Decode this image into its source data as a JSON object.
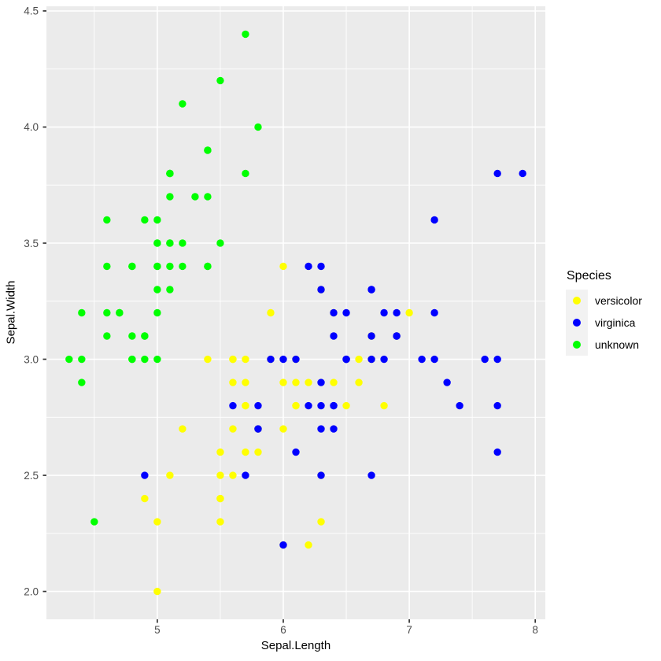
{
  "legend": {
    "title": "Species",
    "entries": [
      {
        "label": "versicolor",
        "color": "#FFFF00"
      },
      {
        "label": "virginica",
        "color": "#0000FF"
      },
      {
        "label": "unknown",
        "color": "#00FF00"
      }
    ]
  },
  "colors": {
    "background": "#FFFFFF",
    "panel_bg": "#EBEBEB",
    "grid": "#FFFFFF",
    "tick_mark": "#333333",
    "tick_text": "#4D4D4D",
    "axis_title": "#000000",
    "legend_key_bg": "#F2F2F2"
  },
  "chart_data": {
    "type": "scatter",
    "title": "",
    "xlabel": "Sepal.Length",
    "ylabel": "Sepal.Width",
    "xlim": [
      4.12,
      8.08
    ],
    "ylim": [
      1.88,
      4.52
    ],
    "x_ticks": [
      5,
      6,
      7,
      8
    ],
    "x_tick_labels": [
      "5",
      "6",
      "7",
      "8"
    ],
    "x_minor": [
      4.5,
      5.5,
      6.5,
      7.5
    ],
    "y_ticks": [
      2.0,
      2.5,
      3.0,
      3.5,
      4.0,
      4.5
    ],
    "y_tick_labels": [
      "2.0",
      "2.5",
      "3.0",
      "3.5",
      "4.0",
      "4.5"
    ],
    "y_minor": [
      2.25,
      2.75,
      3.25,
      3.75,
      4.25
    ],
    "grid": true,
    "legend_position": "right",
    "point_radius": 4.7,
    "series": [
      {
        "name": "unknown",
        "color": "#00FF00",
        "points": [
          [
            5.1,
            3.5
          ],
          [
            4.9,
            3.0
          ],
          [
            4.7,
            3.2
          ],
          [
            4.6,
            3.1
          ],
          [
            5.0,
            3.6
          ],
          [
            5.4,
            3.9
          ],
          [
            4.6,
            3.4
          ],
          [
            5.0,
            3.4
          ],
          [
            4.4,
            2.9
          ],
          [
            4.9,
            3.1
          ],
          [
            5.4,
            3.7
          ],
          [
            4.8,
            3.4
          ],
          [
            4.8,
            3.0
          ],
          [
            4.3,
            3.0
          ],
          [
            5.8,
            4.0
          ],
          [
            5.7,
            4.4
          ],
          [
            5.4,
            3.9
          ],
          [
            5.1,
            3.5
          ],
          [
            5.7,
            3.8
          ],
          [
            5.1,
            3.8
          ],
          [
            5.4,
            3.4
          ],
          [
            5.1,
            3.7
          ],
          [
            4.6,
            3.6
          ],
          [
            5.1,
            3.3
          ],
          [
            4.8,
            3.4
          ],
          [
            5.0,
            3.0
          ],
          [
            5.0,
            3.4
          ],
          [
            5.2,
            3.5
          ],
          [
            5.2,
            3.4
          ],
          [
            4.7,
            3.2
          ],
          [
            4.8,
            3.1
          ],
          [
            5.4,
            3.4
          ],
          [
            5.2,
            4.1
          ],
          [
            5.5,
            4.2
          ],
          [
            4.9,
            3.1
          ],
          [
            5.0,
            3.2
          ],
          [
            5.5,
            3.5
          ],
          [
            4.9,
            3.6
          ],
          [
            4.4,
            3.0
          ],
          [
            5.1,
            3.4
          ],
          [
            5.0,
            3.5
          ],
          [
            4.5,
            2.3
          ],
          [
            4.4,
            3.2
          ],
          [
            5.0,
            3.5
          ],
          [
            5.1,
            3.8
          ],
          [
            4.8,
            3.0
          ],
          [
            5.1,
            3.8
          ],
          [
            4.6,
            3.2
          ],
          [
            5.3,
            3.7
          ],
          [
            5.0,
            3.3
          ]
        ]
      },
      {
        "name": "versicolor",
        "color": "#FFFF00",
        "points": [
          [
            7.0,
            3.2
          ],
          [
            6.4,
            3.2
          ],
          [
            6.9,
            3.1
          ],
          [
            5.5,
            2.3
          ],
          [
            6.5,
            2.8
          ],
          [
            5.7,
            2.8
          ],
          [
            6.3,
            3.3
          ],
          [
            4.9,
            2.4
          ],
          [
            6.6,
            2.9
          ],
          [
            5.2,
            2.7
          ],
          [
            5.0,
            2.0
          ],
          [
            5.9,
            3.0
          ],
          [
            6.0,
            2.2
          ],
          [
            6.1,
            2.9
          ],
          [
            5.6,
            2.9
          ],
          [
            6.7,
            3.1
          ],
          [
            5.6,
            3.0
          ],
          [
            5.8,
            2.7
          ],
          [
            6.2,
            2.2
          ],
          [
            5.6,
            2.5
          ],
          [
            5.9,
            3.2
          ],
          [
            6.1,
            2.8
          ],
          [
            6.3,
            2.5
          ],
          [
            6.1,
            2.8
          ],
          [
            6.4,
            2.9
          ],
          [
            6.6,
            3.0
          ],
          [
            6.8,
            2.8
          ],
          [
            6.7,
            3.0
          ],
          [
            6.0,
            2.9
          ],
          [
            5.7,
            2.6
          ],
          [
            5.5,
            2.4
          ],
          [
            5.5,
            2.4
          ],
          [
            5.8,
            2.7
          ],
          [
            6.0,
            2.7
          ],
          [
            5.4,
            3.0
          ],
          [
            6.0,
            3.4
          ],
          [
            6.7,
            3.1
          ],
          [
            6.3,
            2.3
          ],
          [
            5.6,
            3.0
          ],
          [
            5.5,
            2.5
          ],
          [
            5.5,
            2.6
          ],
          [
            6.1,
            3.0
          ],
          [
            5.8,
            2.6
          ],
          [
            5.0,
            2.3
          ],
          [
            5.6,
            2.7
          ],
          [
            5.7,
            3.0
          ],
          [
            5.7,
            2.9
          ],
          [
            6.2,
            2.9
          ],
          [
            5.1,
            2.5
          ],
          [
            5.7,
            2.8
          ]
        ]
      },
      {
        "name": "virginica",
        "color": "#0000FF",
        "points": [
          [
            6.3,
            3.3
          ],
          [
            5.8,
            2.7
          ],
          [
            7.1,
            3.0
          ],
          [
            6.3,
            2.9
          ],
          [
            6.5,
            3.0
          ],
          [
            7.6,
            3.0
          ],
          [
            4.9,
            2.5
          ],
          [
            7.3,
            2.9
          ],
          [
            6.7,
            2.5
          ],
          [
            7.2,
            3.6
          ],
          [
            6.5,
            3.2
          ],
          [
            6.4,
            2.7
          ],
          [
            6.8,
            3.0
          ],
          [
            5.7,
            2.5
          ],
          [
            5.8,
            2.8
          ],
          [
            6.4,
            3.2
          ],
          [
            6.5,
            3.0
          ],
          [
            7.7,
            3.8
          ],
          [
            7.7,
            2.6
          ],
          [
            6.0,
            2.2
          ],
          [
            6.9,
            3.2
          ],
          [
            5.6,
            2.8
          ],
          [
            7.7,
            2.8
          ],
          [
            6.3,
            2.7
          ],
          [
            6.7,
            3.3
          ],
          [
            7.2,
            3.2
          ],
          [
            6.2,
            2.8
          ],
          [
            6.1,
            3.0
          ],
          [
            6.4,
            2.8
          ],
          [
            7.2,
            3.0
          ],
          [
            7.4,
            2.8
          ],
          [
            7.9,
            3.8
          ],
          [
            6.4,
            2.8
          ],
          [
            6.3,
            2.8
          ],
          [
            6.1,
            2.6
          ],
          [
            7.7,
            3.0
          ],
          [
            6.3,
            3.4
          ],
          [
            6.4,
            3.1
          ],
          [
            6.0,
            3.0
          ],
          [
            6.9,
            3.1
          ],
          [
            6.7,
            3.1
          ],
          [
            6.9,
            3.1
          ],
          [
            5.8,
            2.7
          ],
          [
            6.8,
            3.2
          ],
          [
            6.7,
            3.3
          ],
          [
            6.7,
            3.0
          ],
          [
            6.3,
            2.5
          ],
          [
            6.5,
            3.0
          ],
          [
            6.2,
            3.4
          ],
          [
            5.9,
            3.0
          ]
        ]
      }
    ]
  }
}
